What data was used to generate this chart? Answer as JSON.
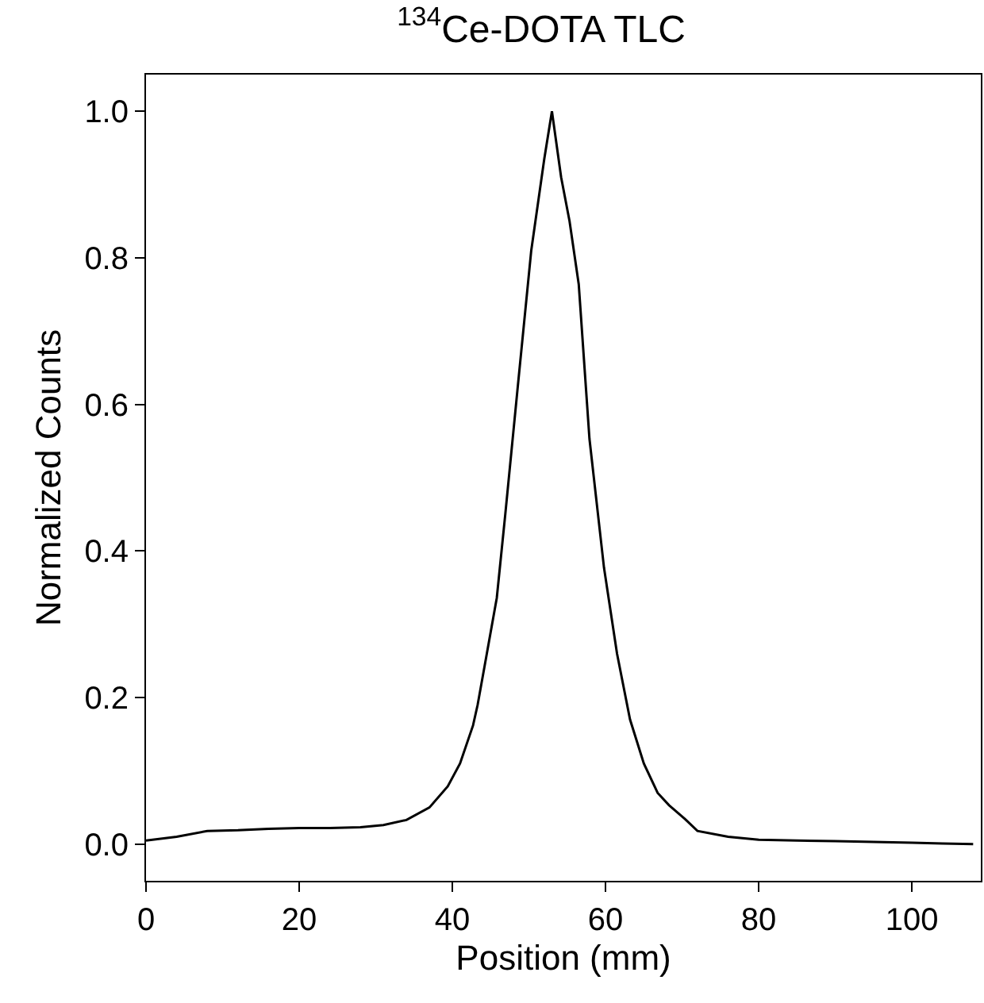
{
  "chart_data": {
    "type": "line",
    "title": "$^{134}$Ce-DOTA TLC",
    "xlabel": "Position (mm)",
    "ylabel": "Normalized Counts",
    "x": [
      0,
      4,
      8,
      12,
      16,
      20,
      24,
      28,
      31,
      34,
      37,
      39.4,
      41,
      42.7,
      43.3,
      44.5,
      45.8,
      46.9,
      48.5,
      50.3,
      52,
      53,
      54.2,
      55.3,
      56.5,
      57.9,
      59.8,
      61.5,
      63.2,
      65,
      66.8,
      68.3,
      70.4,
      72,
      76,
      80,
      85,
      90,
      95,
      100,
      104,
      108
    ],
    "series": [
      {
        "color": "#000000",
        "values": [
          0.005,
          0.01,
          0.018,
          0.019,
          0.021,
          0.022,
          0.022,
          0.023,
          0.026,
          0.033,
          0.05,
          0.079,
          0.11,
          0.162,
          0.19,
          0.26,
          0.336,
          0.449,
          0.62,
          0.81,
          0.935,
          1.0,
          0.91,
          0.85,
          0.764,
          0.553,
          0.377,
          0.26,
          0.17,
          0.11,
          0.07,
          0.053,
          0.034,
          0.018,
          0.01,
          0.006,
          0.005,
          0.004,
          0.003,
          0.002,
          0.001,
          0.0
        ]
      }
    ],
    "xlim": [
      0,
      109
    ],
    "ylim": [
      -0.05,
      1.05
    ],
    "xticks": [
      0,
      20,
      40,
      60,
      80,
      100
    ],
    "yticks": [
      {
        "value": 0,
        "label": "0.0"
      },
      0.2,
      0.4,
      0.6,
      0.8,
      {
        "value": 1,
        "label": "1.0"
      }
    ],
    "line_style": "solid",
    "marker": "none"
  }
}
